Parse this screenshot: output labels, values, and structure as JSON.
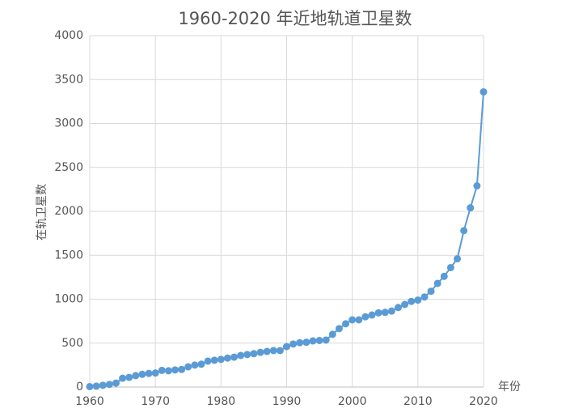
{
  "chart_data": {
    "type": "line",
    "title": "1960-2020 年近地轨道卫星数",
    "x_label": "年份",
    "y_label": "在轨卫星数",
    "x": [
      1960,
      1961,
      1962,
      1963,
      1964,
      1965,
      1966,
      1967,
      1968,
      1969,
      1970,
      1971,
      1972,
      1973,
      1974,
      1975,
      1976,
      1977,
      1978,
      1979,
      1980,
      1981,
      1982,
      1983,
      1984,
      1985,
      1986,
      1987,
      1988,
      1989,
      1990,
      1991,
      1992,
      1993,
      1994,
      1995,
      1996,
      1997,
      1998,
      1999,
      2000,
      2001,
      2002,
      2003,
      2004,
      2005,
      2006,
      2007,
      2008,
      2009,
      2010,
      2011,
      2012,
      2013,
      2014,
      2015,
      2016,
      2017,
      2018,
      2019,
      2020
    ],
    "values": [
      5,
      10,
      20,
      30,
      45,
      100,
      110,
      130,
      145,
      155,
      160,
      190,
      185,
      195,
      200,
      230,
      250,
      260,
      295,
      305,
      315,
      330,
      340,
      360,
      370,
      380,
      395,
      405,
      415,
      415,
      460,
      490,
      505,
      510,
      525,
      530,
      535,
      600,
      665,
      720,
      765,
      765,
      800,
      820,
      845,
      850,
      865,
      905,
      940,
      975,
      990,
      1025,
      1090,
      1180,
      1260,
      1360,
      1460,
      1780,
      2040,
      2290,
      3360
    ],
    "color": "#5b9bd5",
    "xlim": [
      1960,
      2020
    ],
    "xticks": [
      1960,
      1970,
      1980,
      1990,
      2000,
      2010,
      2020
    ],
    "ylim": [
      0,
      4000
    ],
    "yticks": [
      0,
      500,
      1000,
      1500,
      2000,
      2500,
      3000,
      3500,
      4000
    ],
    "grid": true
  }
}
